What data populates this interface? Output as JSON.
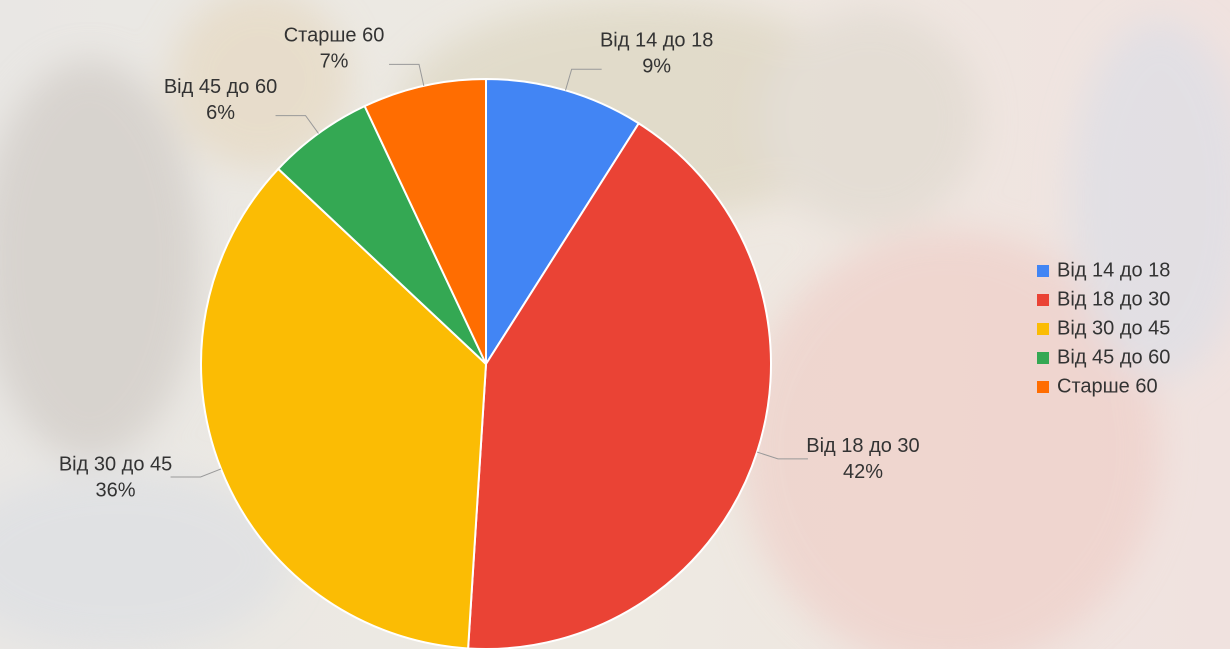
{
  "chart_data": {
    "type": "pie",
    "categories": [
      "Від 14 до 18",
      "Від 18 до 30",
      "Від 30 до 45",
      "Від 45 до 60",
      "Старше 60"
    ],
    "values": [
      9,
      42,
      36,
      6,
      7
    ],
    "value_labels": [
      "9%",
      "42%",
      "36%",
      "6%",
      "7%"
    ],
    "colors": [
      "#4285f4",
      "#ea4335",
      "#fbbc04",
      "#34a853",
      "#ff6d01"
    ],
    "legend": "right"
  }
}
